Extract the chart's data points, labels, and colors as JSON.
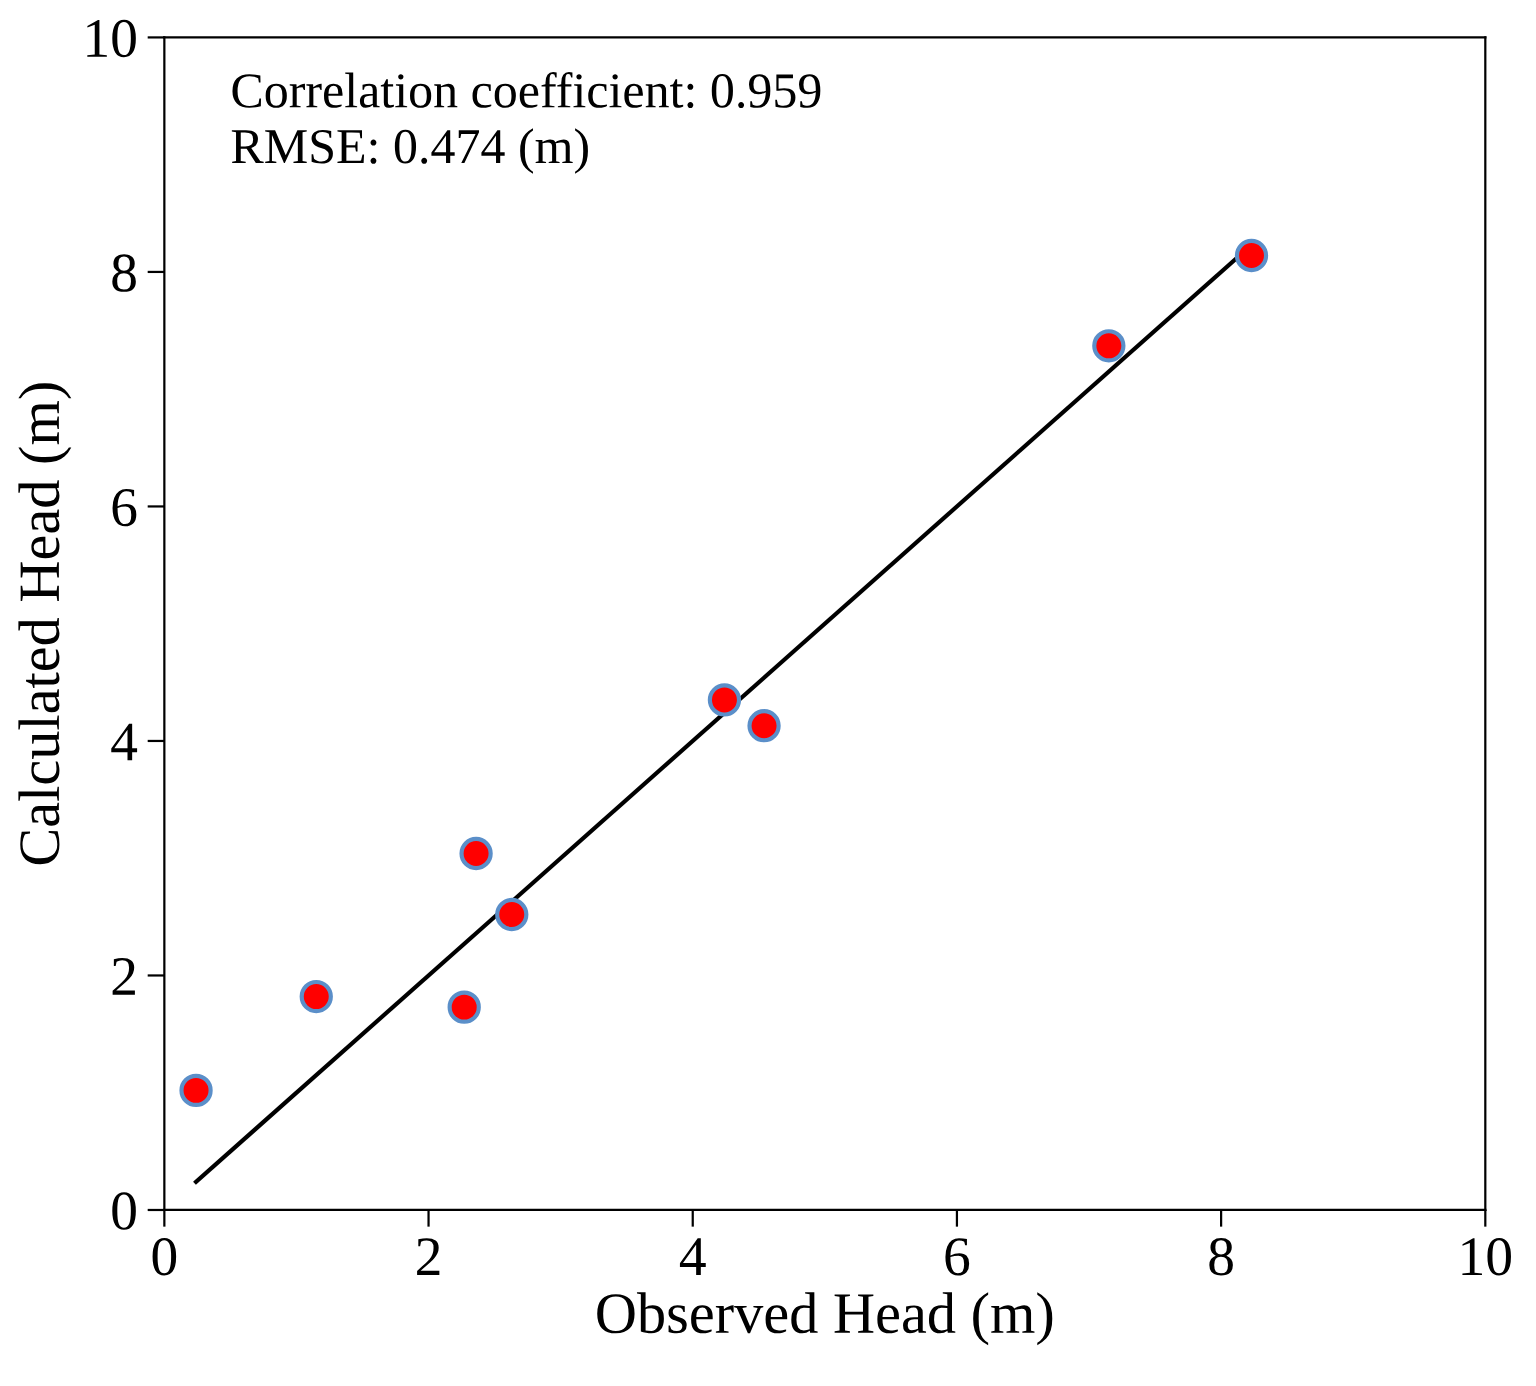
{
  "chart_data": {
    "type": "scatter",
    "xlabel": "Observed Head (m)",
    "ylabel": "Calculated Head (m)",
    "annotations": [
      "Correlation coefficient: 0.959\nRMSE: 0.474 (m)"
    ],
    "xlim": [
      0,
      10
    ],
    "ylim": [
      0,
      10
    ],
    "xticks": [
      0,
      2,
      4,
      6,
      8,
      10
    ],
    "yticks": [
      0,
      2,
      4,
      6,
      8,
      10
    ],
    "grid": false,
    "marker": "circle",
    "series": [
      {
        "type": "line",
        "color": "#000000",
        "x": [
          0.24,
          8.24
        ],
        "values": [
          0.24,
          8.24
        ],
        "marker": "none"
      },
      {
        "color": "#ff0000",
        "x": [
          0.24,
          1.15,
          2.27,
          2.36,
          2.63,
          4.24,
          4.54,
          7.15,
          8.23
        ],
        "values": [
          1.02,
          1.82,
          1.73,
          3.04,
          2.52,
          4.35,
          4.13,
          7.37,
          8.14
        ]
      }
    ]
  }
}
